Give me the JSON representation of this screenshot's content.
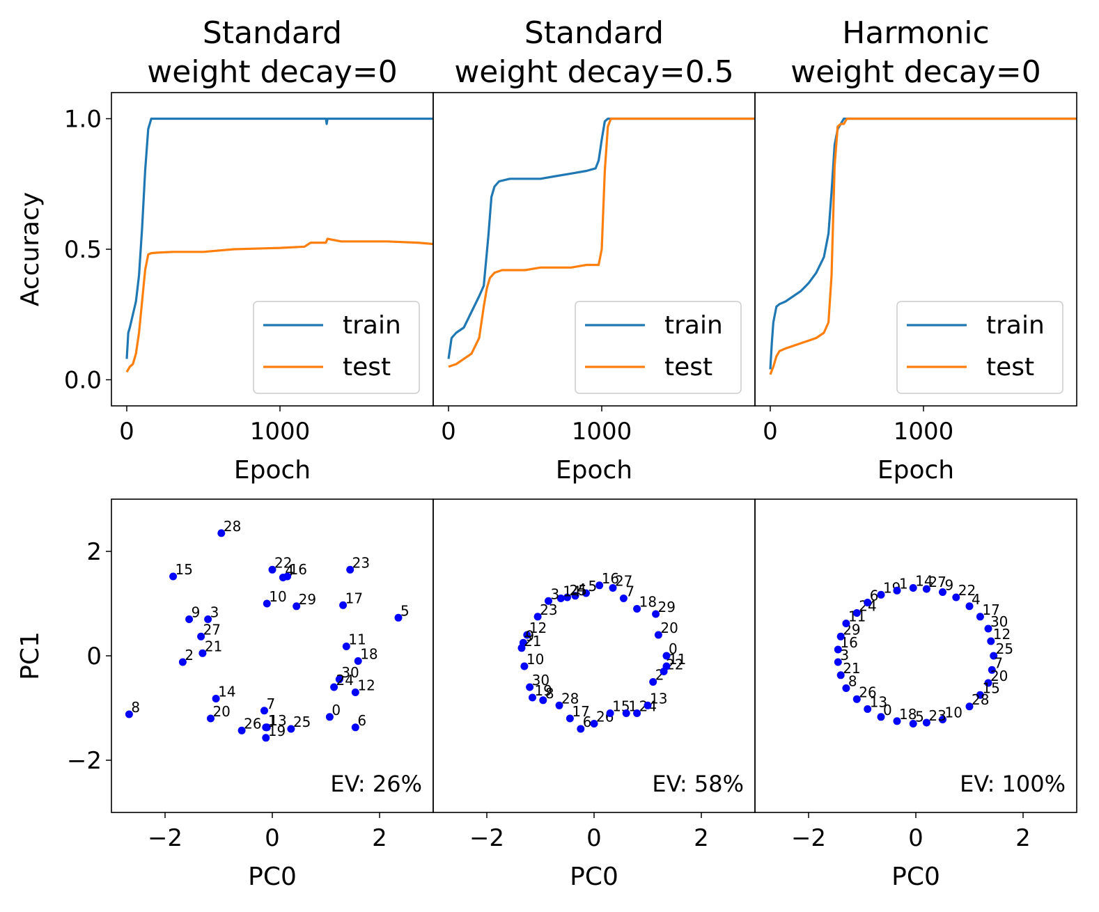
{
  "chart_data": [
    {
      "type": "line",
      "title": [
        "Standard",
        "weight decay=0"
      ],
      "xlabel": "Epoch",
      "ylabel": "Accuracy",
      "xlim": [
        -100,
        2000
      ],
      "ylim": [
        -0.1,
        1.1
      ],
      "xticks": [
        0,
        1000
      ],
      "yticks": [
        0.0,
        0.5,
        1.0
      ],
      "legend": "lower-right",
      "series": [
        {
          "name": "train",
          "color": "#1f77b4",
          "x": [
            0,
            10,
            20,
            40,
            60,
            80,
            100,
            120,
            140,
            160,
            180,
            200,
            300,
            600,
            1000,
            1300,
            1305,
            1310,
            1400,
            1700,
            2000
          ],
          "y": [
            0.08,
            0.18,
            0.2,
            0.25,
            0.3,
            0.4,
            0.58,
            0.8,
            0.96,
            1.0,
            1.0,
            1.0,
            1.0,
            1.0,
            1.0,
            1.0,
            0.98,
            1.0,
            1.0,
            1.0,
            1.0
          ]
        },
        {
          "name": "test",
          "color": "#ff7f0e",
          "x": [
            0,
            20,
            40,
            60,
            80,
            100,
            120,
            140,
            160,
            200,
            300,
            500,
            700,
            1000,
            1160,
            1200,
            1300,
            1310,
            1400,
            1700,
            1900,
            2000
          ],
          "y": [
            0.03,
            0.05,
            0.06,
            0.1,
            0.18,
            0.3,
            0.42,
            0.48,
            0.485,
            0.487,
            0.49,
            0.49,
            0.5,
            0.505,
            0.51,
            0.525,
            0.525,
            0.54,
            0.53,
            0.53,
            0.525,
            0.52
          ]
        }
      ]
    },
    {
      "type": "line",
      "title": [
        "Standard",
        "weight decay=0.5"
      ],
      "xlabel": "Epoch",
      "ylabel": "",
      "xlim": [
        -100,
        2000
      ],
      "ylim": [
        -0.1,
        1.1
      ],
      "xticks": [
        0,
        1000
      ],
      "yticks": [],
      "legend": "lower-right",
      "series": [
        {
          "name": "train",
          "color": "#1f77b4",
          "x": [
            0,
            20,
            50,
            100,
            150,
            200,
            230,
            260,
            280,
            300,
            330,
            400,
            500,
            600,
            700,
            800,
            900,
            960,
            980,
            1000,
            1020,
            1040,
            1060,
            1100,
            1500,
            2000
          ],
          "y": [
            0.08,
            0.16,
            0.18,
            0.2,
            0.26,
            0.32,
            0.36,
            0.55,
            0.7,
            0.74,
            0.76,
            0.77,
            0.77,
            0.77,
            0.78,
            0.79,
            0.8,
            0.81,
            0.84,
            0.92,
            0.99,
            1.0,
            1.0,
            1.0,
            1.0,
            1.0
          ]
        },
        {
          "name": "test",
          "color": "#ff7f0e",
          "x": [
            0,
            50,
            100,
            150,
            200,
            230,
            250,
            270,
            300,
            350,
            400,
            500,
            600,
            700,
            800,
            900,
            980,
            1000,
            1020,
            1040,
            1060,
            1100,
            1500,
            2000
          ],
          "y": [
            0.05,
            0.06,
            0.08,
            0.1,
            0.16,
            0.28,
            0.35,
            0.39,
            0.41,
            0.42,
            0.42,
            0.42,
            0.43,
            0.43,
            0.43,
            0.44,
            0.44,
            0.5,
            0.8,
            0.97,
            1.0,
            1.0,
            1.0,
            1.0
          ]
        }
      ]
    },
    {
      "type": "line",
      "title": [
        "Harmonic",
        "weight decay=0"
      ],
      "xlabel": "Epoch",
      "ylabel": "",
      "xlim": [
        -100,
        2000
      ],
      "ylim": [
        -0.1,
        1.1
      ],
      "xticks": [
        0,
        1000
      ],
      "yticks": [],
      "legend": "lower-right",
      "series": [
        {
          "name": "train",
          "color": "#1f77b4",
          "x": [
            0,
            10,
            20,
            40,
            60,
            100,
            150,
            200,
            250,
            300,
            350,
            380,
            400,
            420,
            440,
            460,
            480,
            500,
            600,
            1000,
            1500,
            2000
          ],
          "y": [
            0.04,
            0.14,
            0.22,
            0.28,
            0.29,
            0.3,
            0.32,
            0.34,
            0.37,
            0.41,
            0.47,
            0.56,
            0.72,
            0.9,
            0.96,
            0.98,
            1.0,
            1.0,
            1.0,
            1.0,
            1.0,
            1.0
          ]
        },
        {
          "name": "test",
          "color": "#ff7f0e",
          "x": [
            0,
            20,
            40,
            60,
            100,
            150,
            200,
            250,
            300,
            350,
            380,
            400,
            420,
            440,
            460,
            480,
            500,
            1000,
            1500,
            2000
          ],
          "y": [
            0.02,
            0.05,
            0.09,
            0.11,
            0.12,
            0.13,
            0.14,
            0.15,
            0.16,
            0.18,
            0.22,
            0.4,
            0.82,
            0.97,
            0.98,
            0.98,
            1.0,
            1.0,
            1.0,
            1.0
          ]
        }
      ]
    },
    {
      "type": "scatter",
      "xlabel": "PC0",
      "ylabel": "PC1",
      "xlim": [
        -3,
        3
      ],
      "ylim": [
        -3,
        3
      ],
      "xticks": [
        -2,
        0,
        2
      ],
      "yticks": [
        -2,
        0,
        2
      ],
      "annotation": "EV: 26%",
      "color": "#0000ff",
      "points": [
        {
          "label": "28",
          "x": -0.95,
          "y": 2.35
        },
        {
          "label": "15",
          "x": -1.85,
          "y": 1.52
        },
        {
          "label": "22",
          "x": 0.0,
          "y": 1.65
        },
        {
          "label": "4",
          "x": 0.2,
          "y": 1.5
        },
        {
          "label": "16",
          "x": 0.28,
          "y": 1.52
        },
        {
          "label": "23",
          "x": 1.45,
          "y": 1.65
        },
        {
          "label": "10",
          "x": -0.1,
          "y": 1.0
        },
        {
          "label": "29",
          "x": 0.45,
          "y": 0.95
        },
        {
          "label": "17",
          "x": 1.32,
          "y": 0.97
        },
        {
          "label": "5",
          "x": 2.35,
          "y": 0.73
        },
        {
          "label": "9",
          "x": -1.55,
          "y": 0.7
        },
        {
          "label": "3",
          "x": -1.2,
          "y": 0.7
        },
        {
          "label": "27",
          "x": -1.33,
          "y": 0.37
        },
        {
          "label": "21",
          "x": -1.3,
          "y": 0.05
        },
        {
          "label": "2",
          "x": -1.67,
          "y": -0.12
        },
        {
          "label": "11",
          "x": 1.38,
          "y": 0.18
        },
        {
          "label": "18",
          "x": 1.6,
          "y": -0.1
        },
        {
          "label": "30",
          "x": 1.25,
          "y": -0.45
        },
        {
          "label": "24",
          "x": 1.15,
          "y": -0.6
        },
        {
          "label": "12",
          "x": 1.55,
          "y": -0.7
        },
        {
          "label": "14",
          "x": -1.05,
          "y": -0.82
        },
        {
          "label": "20",
          "x": -1.15,
          "y": -1.2
        },
        {
          "label": "7",
          "x": -0.15,
          "y": -1.05
        },
        {
          "label": "0",
          "x": 1.07,
          "y": -1.17
        },
        {
          "label": "6",
          "x": 1.55,
          "y": -1.37
        },
        {
          "label": "26",
          "x": -0.57,
          "y": -1.43
        },
        {
          "label": "1",
          "x": -0.12,
          "y": -1.37
        },
        {
          "label": "13",
          "x": -0.1,
          "y": -1.37
        },
        {
          "label": "25",
          "x": 0.35,
          "y": -1.4
        },
        {
          "label": "19",
          "x": -0.12,
          "y": -1.57
        },
        {
          "label": "8",
          "x": -2.67,
          "y": -1.12
        }
      ]
    },
    {
      "type": "scatter",
      "xlabel": "PC0",
      "ylabel": "",
      "xlim": [
        -3,
        3
      ],
      "ylim": [
        -3,
        3
      ],
      "xticks": [
        -2,
        0,
        2
      ],
      "yticks": [],
      "annotation": "EV: 58%",
      "color": "#0000ff",
      "points": [
        {
          "label": "16",
          "x": 0.1,
          "y": 1.35
        },
        {
          "label": "27",
          "x": 0.35,
          "y": 1.3
        },
        {
          "label": "7",
          "x": 0.55,
          "y": 1.1
        },
        {
          "label": "5",
          "x": -0.15,
          "y": 1.2
        },
        {
          "label": "4",
          "x": -0.35,
          "y": 1.15
        },
        {
          "label": "25",
          "x": -0.5,
          "y": 1.12
        },
        {
          "label": "14",
          "x": -0.62,
          "y": 1.1
        },
        {
          "label": "3",
          "x": -0.85,
          "y": 1.05
        },
        {
          "label": "23",
          "x": -1.05,
          "y": 0.75
        },
        {
          "label": "12",
          "x": -1.25,
          "y": 0.4
        },
        {
          "label": "9",
          "x": -1.32,
          "y": 0.25
        },
        {
          "label": "21",
          "x": -1.35,
          "y": 0.15
        },
        {
          "label": "10",
          "x": -1.3,
          "y": -0.2
        },
        {
          "label": "30",
          "x": -1.2,
          "y": -0.6
        },
        {
          "label": "19",
          "x": -1.15,
          "y": -0.8
        },
        {
          "label": "8",
          "x": -0.95,
          "y": -0.85
        },
        {
          "label": "28",
          "x": -0.65,
          "y": -0.95
        },
        {
          "label": "17",
          "x": -0.45,
          "y": -1.2
        },
        {
          "label": "6",
          "x": -0.25,
          "y": -1.4
        },
        {
          "label": "26",
          "x": 0.0,
          "y": -1.3
        },
        {
          "label": "15",
          "x": 0.3,
          "y": -1.1
        },
        {
          "label": "1",
          "x": 0.6,
          "y": -1.1
        },
        {
          "label": "24",
          "x": 0.8,
          "y": -1.1
        },
        {
          "label": "13",
          "x": 1.0,
          "y": -0.95
        },
        {
          "label": "2",
          "x": 1.1,
          "y": -0.5
        },
        {
          "label": "22",
          "x": 1.3,
          "y": -0.3
        },
        {
          "label": "11",
          "x": 1.35,
          "y": -0.2
        },
        {
          "label": "0",
          "x": 1.35,
          "y": 0.0
        },
        {
          "label": "20",
          "x": 1.2,
          "y": 0.4
        },
        {
          "label": "29",
          "x": 1.15,
          "y": 0.8
        },
        {
          "label": "18",
          "x": 0.8,
          "y": 0.9
        }
      ]
    },
    {
      "type": "scatter",
      "xlabel": "PC0",
      "ylabel": "",
      "xlim": [
        -3,
        3
      ],
      "ylim": [
        -3,
        3
      ],
      "xticks": [
        -2,
        0,
        2
      ],
      "yticks": [],
      "annotation": "EV: 100%",
      "color": "#0000ff",
      "points": [
        {
          "label": "14",
          "x": -0.05,
          "y": 1.3
        },
        {
          "label": "27",
          "x": 0.2,
          "y": 1.28
        },
        {
          "label": "9",
          "x": 0.5,
          "y": 1.22
        },
        {
          "label": "22",
          "x": 0.75,
          "y": 1.12
        },
        {
          "label": "4",
          "x": 1.0,
          "y": 0.95
        },
        {
          "label": "17",
          "x": 1.2,
          "y": 0.75
        },
        {
          "label": "30",
          "x": 1.35,
          "y": 0.52
        },
        {
          "label": "12",
          "x": 1.4,
          "y": 0.28
        },
        {
          "label": "25",
          "x": 1.45,
          "y": 0.0
        },
        {
          "label": "7",
          "x": 1.42,
          "y": -0.27
        },
        {
          "label": "20",
          "x": 1.35,
          "y": -0.52
        },
        {
          "label": "15",
          "x": 1.2,
          "y": -0.75
        },
        {
          "label": "28",
          "x": 1.0,
          "y": -0.97
        },
        {
          "label": "10",
          "x": 0.5,
          "y": -1.22
        },
        {
          "label": "23",
          "x": 0.2,
          "y": -1.28
        },
        {
          "label": "5",
          "x": -0.05,
          "y": -1.3
        },
        {
          "label": "18",
          "x": -0.35,
          "y": -1.25
        },
        {
          "label": "0",
          "x": -0.65,
          "y": -1.17
        },
        {
          "label": "13",
          "x": -0.9,
          "y": -1.02
        },
        {
          "label": "26",
          "x": -1.1,
          "y": -0.83
        },
        {
          "label": "8",
          "x": -1.3,
          "y": -0.62
        },
        {
          "label": "21",
          "x": -1.4,
          "y": -0.37
        },
        {
          "label": "3",
          "x": -1.45,
          "y": -0.12
        },
        {
          "label": "16",
          "x": -1.45,
          "y": 0.12
        },
        {
          "label": "29",
          "x": -1.4,
          "y": 0.37
        },
        {
          "label": "11",
          "x": -1.3,
          "y": 0.62
        },
        {
          "label": "24",
          "x": -1.1,
          "y": 0.82
        },
        {
          "label": "6",
          "x": -0.9,
          "y": 1.02
        },
        {
          "label": "19",
          "x": -0.65,
          "y": 1.17
        },
        {
          "label": "1",
          "x": -0.35,
          "y": 1.25
        }
      ]
    }
  ]
}
